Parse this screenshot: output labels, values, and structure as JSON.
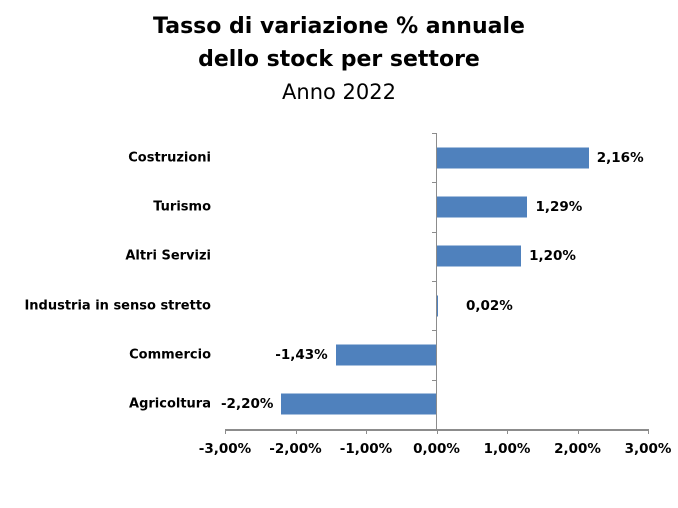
{
  "title": {
    "line1": "Tasso di variazione % annuale",
    "line2": "dello stock per settore",
    "line3": "Anno 2022"
  },
  "chart_data": {
    "type": "bar",
    "orientation": "horizontal",
    "title": "Tasso di variazione % annuale dello stock per settore",
    "subtitle": "Anno 2022",
    "categories": [
      "Costruzioni",
      "Turismo",
      "Altri Servizi",
      "Industria in senso stretto",
      "Commercio",
      "Agricoltura"
    ],
    "values": [
      2.16,
      1.29,
      1.2,
      0.02,
      -1.43,
      -2.2
    ],
    "value_labels": [
      "2,16%",
      "1,29%",
      "1,20%",
      "0,02%",
      "-1,43%",
      "-2,20%"
    ],
    "x_ticks": [
      -3,
      -2,
      -1,
      0,
      1,
      2,
      3
    ],
    "x_tick_labels": [
      "-3,00%",
      "-2,00%",
      "-1,00%",
      "0,00%",
      "1,00%",
      "2,00%",
      "3,00%"
    ],
    "xlim": [
      -3,
      3
    ],
    "xlabel": "",
    "ylabel": "",
    "grid": false,
    "legend": false,
    "bar_color": "#4F81BD",
    "axis_color": "#8C8C8C",
    "text_color": "#000000"
  }
}
